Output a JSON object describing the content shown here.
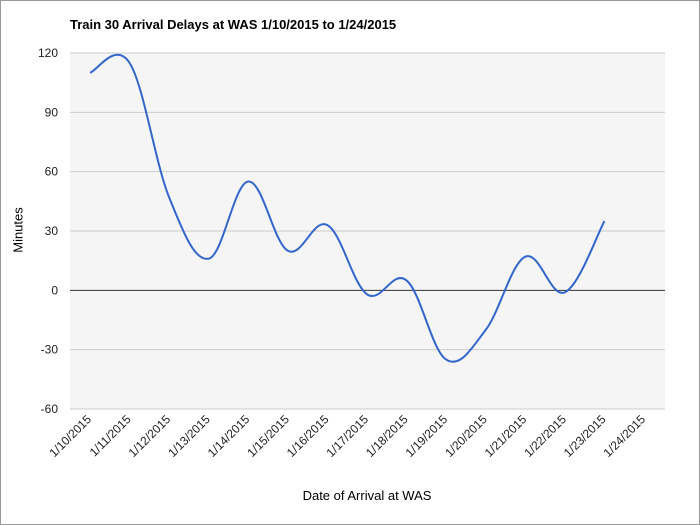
{
  "chart_data": {
    "type": "line",
    "title": "Train 30 Arrival Delays at WAS 1/10/2015 to 1/24/2015",
    "xlabel": "Date of Arrival at WAS",
    "ylabel": "Minutes",
    "x_categories": [
      "1/10/2015",
      "1/11/2015",
      "1/12/2015",
      "1/13/2015",
      "1/14/2015",
      "1/15/2015",
      "1/16/2015",
      "1/17/2015",
      "1/18/2015",
      "1/19/2015",
      "1/20/2015",
      "1/21/2015",
      "1/22/2015",
      "1/23/2015",
      "1/24/2015"
    ],
    "ylim": [
      -60,
      120
    ],
    "yticks": [
      -60,
      -30,
      0,
      30,
      60,
      90,
      120
    ],
    "grid": true,
    "series": [
      {
        "values": [
          110,
          115,
          47,
          16,
          55,
          20,
          33,
          -2,
          5,
          -35,
          -20,
          17,
          -1,
          35,
          null
        ],
        "color": "#3366cc"
      }
    ]
  }
}
